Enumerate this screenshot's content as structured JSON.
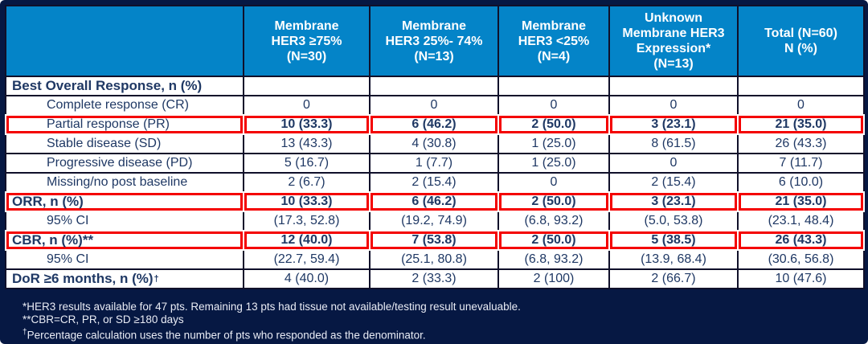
{
  "colors": {
    "page_bg": "#061843",
    "header_bg": "#0484C8",
    "body_text": "#1F3864",
    "highlight_box": "#F40000",
    "grid_border": "#10102A",
    "footnote_text": "#E9ECF5"
  },
  "header": {
    "cells": [
      "",
      "Membrane\nHER3 ≥75%\n(N=30)",
      "Membrane\nHER3 25%- 74%\n(N=13)",
      "Membrane\nHER3 <25%\n(N=4)",
      "Unknown\nMembrane HER3\nExpression*\n(N=13)",
      "Total (N=60)\nN (%)"
    ]
  },
  "rows": [
    {
      "label": "Best Overall Response, n (%)",
      "values": [
        "",
        "",
        "",
        "",
        ""
      ]
    },
    {
      "label": "Complete response (CR)",
      "values": [
        "0",
        "0",
        "0",
        "0",
        "0"
      ]
    },
    {
      "label": "Partial response (PR)",
      "values": [
        "10 (33.3)",
        "6 (46.2)",
        "2 (50.0)",
        "3 (23.1)",
        "21 (35.0)"
      ]
    },
    {
      "label": "Stable disease (SD)",
      "values": [
        "13 (43.3)",
        "4 (30.8)",
        "1 (25.0)",
        "8 (61.5)",
        "26 (43.3)"
      ]
    },
    {
      "label": "Progressive disease (PD)",
      "values": [
        "5 (16.7)",
        "1 (7.7)",
        "1 (25.0)",
        "0",
        "7 (11.7)"
      ]
    },
    {
      "label": "Missing/no post baseline",
      "values": [
        "2 (6.7)",
        "2 (15.4)",
        "0",
        "2 (15.4)",
        "6 (10.0)"
      ]
    },
    {
      "label": "ORR, n (%)",
      "values": [
        "10 (33.3)",
        "6 (46.2)",
        "2 (50.0)",
        "3 (23.1)",
        "21 (35.0)"
      ]
    },
    {
      "label": "95% CI",
      "values": [
        "(17.3, 52.8)",
        "(19.2, 74.9)",
        "(6.8, 93.2)",
        "(5.0, 53.8)",
        "(23.1, 48.4)"
      ]
    },
    {
      "label": "CBR, n (%)**",
      "values": [
        "12 (40.0)",
        "7 (53.8)",
        "2 (50.0)",
        "5 (38.5)",
        "26 (43.3)"
      ]
    },
    {
      "label": "95% CI",
      "values": [
        "(22.7, 59.4)",
        "(25.1, 80.8)",
        "(6.8, 93.2)",
        "(13.9, 68.4)",
        "(30.6, 56.8)"
      ]
    },
    {
      "label": "DoR ≥6 months, n (%)",
      "sup": "†",
      "values": [
        "4 (40.0)",
        "2 (33.3)",
        "2 (100)",
        "2 (66.7)",
        "10 (47.6)"
      ]
    }
  ],
  "footnotes": [
    {
      "marker": "*",
      "text": "HER3 results available for 47 pts. Remaining 13 pts had tissue not available/testing result unevaluable."
    },
    {
      "marker": "**",
      "text": "CBR=CR, PR, or SD ≥180 days"
    },
    {
      "marker": "†",
      "text": "Percentage calculation uses the number of pts who responded as the denominator."
    }
  ]
}
